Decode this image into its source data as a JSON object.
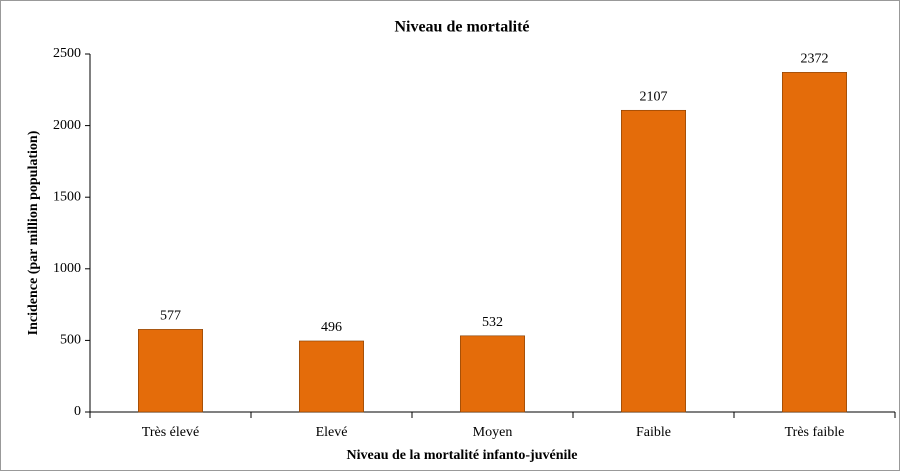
{
  "chart_data": {
    "type": "bar",
    "title": "Niveau de mortalité",
    "x_label": "Niveau de la mortalité infanto-juvénile",
    "y_label": "Incidence  (par million population)",
    "categories": [
      "Très élevé",
      "Elevé",
      "Moyen",
      "Faible",
      "Très faible"
    ],
    "values": [
      577,
      496,
      532,
      2107,
      2372
    ],
    "color": "#e46c0a",
    "ylim": [
      0,
      2500
    ],
    "yticks": [
      0,
      500,
      1000,
      1500,
      2000,
      2500
    ],
    "grid": false
  }
}
